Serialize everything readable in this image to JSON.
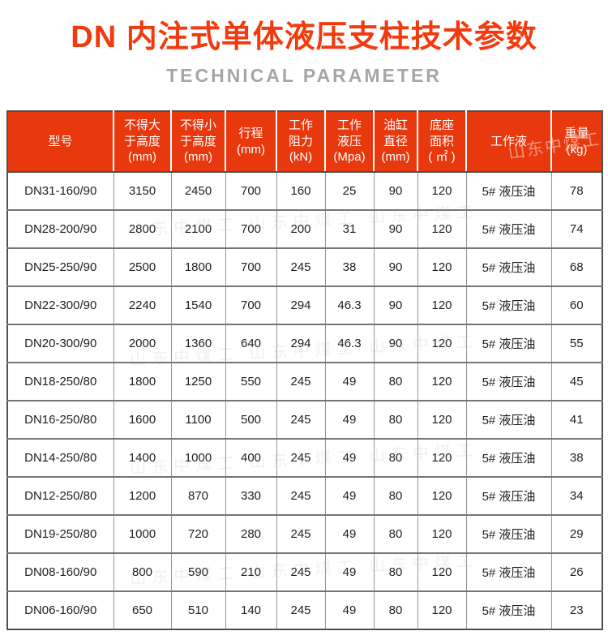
{
  "header": {
    "title": "DN 内注式单体液压支柱技术参数",
    "subtitle": "TECHNICAL PARAMETER"
  },
  "table": {
    "columns": [
      [
        "型号"
      ],
      [
        "不得大",
        "于高度",
        "(mm)"
      ],
      [
        "不得小",
        "于高度",
        "(mm)"
      ],
      [
        "行程",
        "(mm)"
      ],
      [
        "工作",
        "阻力",
        "(kN)"
      ],
      [
        "工作",
        "液压",
        "(Mpa)"
      ],
      [
        "油缸",
        "直径",
        "(mm)"
      ],
      [
        "底座",
        "面积",
        "( ㎡ )"
      ],
      [
        "工作液"
      ],
      [
        "重量",
        "(kg)"
      ]
    ],
    "rows": [
      [
        "DN31-160/90",
        "3150",
        "2450",
        "700",
        "160",
        "25",
        "90",
        "120",
        "5# 液压油",
        "78"
      ],
      [
        "DN28-200/90",
        "2800",
        "2100",
        "700",
        "200",
        "31",
        "90",
        "120",
        "5# 液压油",
        "74"
      ],
      [
        "DN25-250/90",
        "2500",
        "1800",
        "700",
        "245",
        "38",
        "90",
        "120",
        "5# 液压油",
        "68"
      ],
      [
        "DN22-300/90",
        "2240",
        "1540",
        "700",
        "294",
        "46.3",
        "90",
        "120",
        "5# 液压油",
        "60"
      ],
      [
        "DN20-300/90",
        "2000",
        "1360",
        "640",
        "294",
        "46.3",
        "90",
        "120",
        "5# 液压油",
        "55"
      ],
      [
        "DN18-250/80",
        "1800",
        "1250",
        "550",
        "245",
        "49",
        "80",
        "120",
        "5# 液压油",
        "45"
      ],
      [
        "DN16-250/80",
        "1600",
        "1100",
        "500",
        "245",
        "49",
        "80",
        "120",
        "5# 液压油",
        "41"
      ],
      [
        "DN14-250/80",
        "1400",
        "1000",
        "400",
        "245",
        "49",
        "80",
        "120",
        "5# 液压油",
        "38"
      ],
      [
        "DN12-250/80",
        "1200",
        "870",
        "330",
        "245",
        "49",
        "80",
        "120",
        "5# 液压油",
        "34"
      ],
      [
        "DN19-250/80",
        "1000",
        "720",
        "280",
        "245",
        "49",
        "80",
        "120",
        "5# 液压油",
        "29"
      ],
      [
        "DN08-160/90",
        "800",
        "590",
        "210",
        "245",
        "49",
        "80",
        "120",
        "5# 液压油",
        "26"
      ],
      [
        "DN06-160/90",
        "650",
        "510",
        "140",
        "245",
        "49",
        "80",
        "120",
        "5# 液压油",
        "23"
      ]
    ]
  },
  "colors": {
    "accent_red": "#e7380e",
    "title_red": "#f23a0e",
    "subtitle_gray": "#a6a6a6"
  },
  "watermark": {
    "text": "山东中煤工",
    "strip_text": "山东中煤工 山东中煤工 山东中煤工"
  }
}
